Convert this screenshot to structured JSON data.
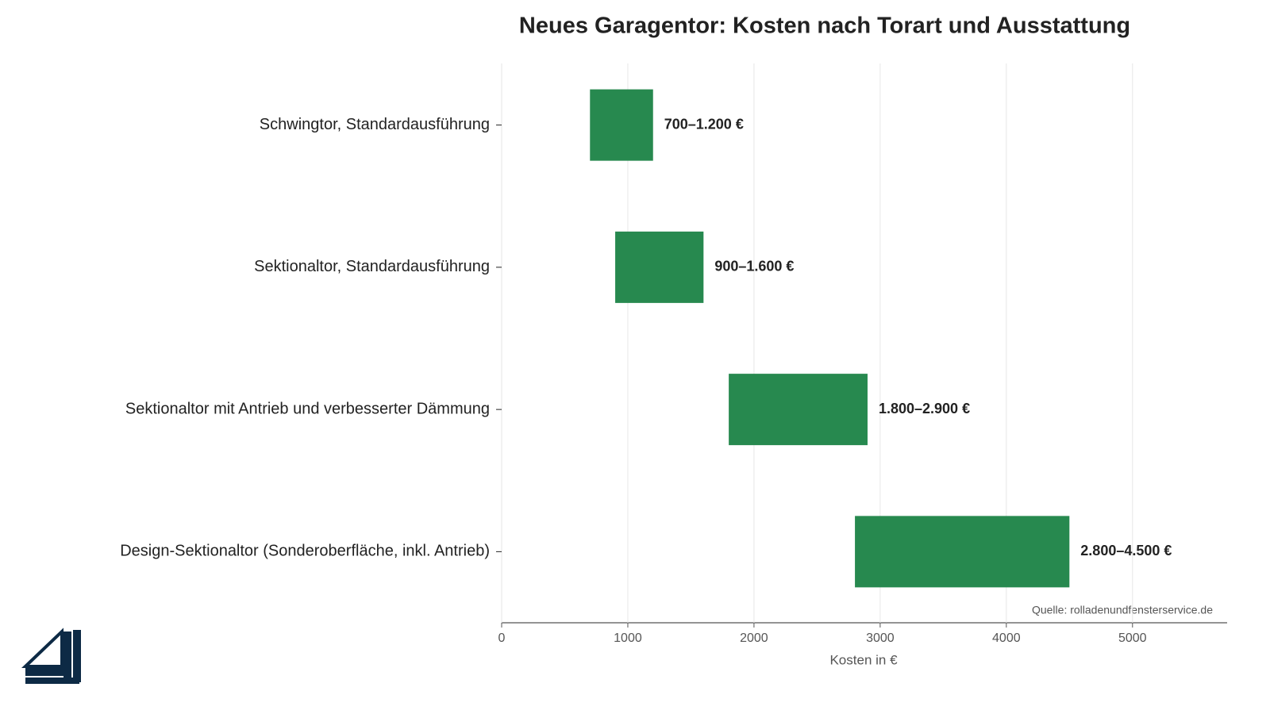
{
  "chart_data": {
    "type": "range-bar",
    "title": "Neues Garagentor: Kosten nach Torart und Ausstattung",
    "categories": [
      "Schwingtor, Standardausführung",
      "Sektionaltor, Standardausführung",
      "Sektionaltor mit Antrieb und verbesserter Dämmung",
      "Design-Sektionaltor (Sonderoberfläche, inkl. Antrieb)"
    ],
    "low": [
      700,
      900,
      1800,
      2800
    ],
    "high": [
      1200,
      1600,
      2900,
      4500
    ],
    "value_labels": [
      "700–1.200 €",
      "900–1.600 €",
      "1.800–2.900 €",
      "2.800–4.500 €"
    ],
    "color": "#27894f",
    "xlabel": "Kosten in €",
    "xlim": [
      0,
      5750
    ],
    "xticks": [
      0,
      1000,
      2000,
      3000,
      4000,
      5000
    ],
    "grid": true,
    "source": "Quelle: rolladenundfensterservice.de"
  }
}
